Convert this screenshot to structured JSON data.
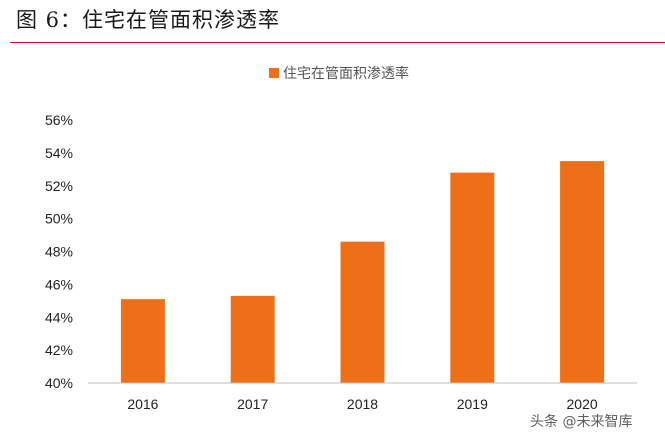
{
  "figure_title": "图 6：住宅在管面积渗透率",
  "watermark": "头条 @未来智库",
  "colors": {
    "bar": "#ed6f17",
    "rule": "#c8102e",
    "axis": "#bfbfbf"
  },
  "chart_data": {
    "type": "bar",
    "title": "",
    "categories": [
      "2016",
      "2017",
      "2018",
      "2019",
      "2020"
    ],
    "series": [
      {
        "name": "住宅在管面积渗透率",
        "values": [
          45.1,
          45.3,
          48.6,
          52.8,
          53.5
        ]
      }
    ],
    "ylim": [
      40,
      56
    ],
    "yticks": [
      "40%",
      "42%",
      "44%",
      "46%",
      "48%",
      "50%",
      "52%",
      "54%",
      "56%"
    ],
    "grid": false,
    "legend": "top-center",
    "xlabel": "",
    "ylabel": ""
  }
}
